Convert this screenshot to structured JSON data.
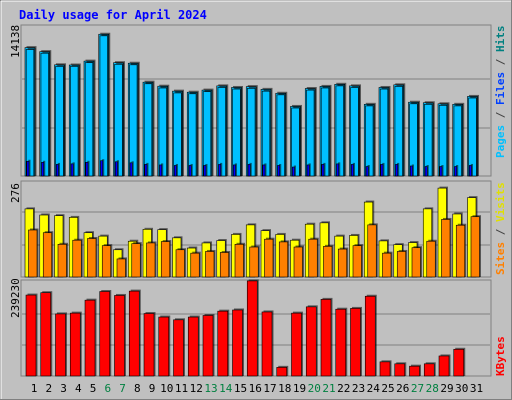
{
  "title": "Daily usage for April 2024",
  "panels": {
    "top": {
      "ymax_label": "14138",
      "ymax": 14138,
      "ylabels": [
        {
          "text": "Pages",
          "color": "#00c0ff"
        },
        {
          "text": " / ",
          "color": "#444444"
        },
        {
          "text": "Files",
          "color": "#0040ff"
        },
        {
          "text": " / ",
          "color": "#444444"
        },
        {
          "text": "Hits",
          "color": "#008080"
        }
      ]
    },
    "mid": {
      "ymax_label": "276",
      "ymax": 276,
      "ylabels": [
        {
          "text": "Sites",
          "color": "#ff8000"
        },
        {
          "text": " / ",
          "color": "#444444"
        },
        {
          "text": "Visits",
          "color": "#e0e000"
        }
      ]
    },
    "bot": {
      "ymax_label": "239230",
      "ymax": 239230,
      "ylabels": [
        {
          "text": "KBytes",
          "color": "#ff0000"
        }
      ]
    }
  },
  "day_labels": [
    "1",
    "2",
    "3",
    "4",
    "5",
    "6",
    "7",
    "8",
    "9",
    "10",
    "11",
    "12",
    "13",
    "14",
    "15",
    "16",
    "17",
    "18",
    "19",
    "20",
    "21",
    "22",
    "23",
    "24",
    "25",
    "26",
    "27",
    "28",
    "29",
    "30",
    "31"
  ],
  "weekend_days": [
    6,
    7,
    13,
    14,
    20,
    21,
    27,
    28
  ],
  "colors": {
    "hits": "#00c0ff",
    "files": "#0000ff",
    "pages": "#0000a0",
    "visits": "#ffff00",
    "sites": "#ff8000",
    "kbytes": "#ff0000",
    "weekday_label": "#000000",
    "weekend_label": "#008040"
  },
  "chart_data": [
    {
      "type": "bar",
      "categories": [
        "1",
        "2",
        "3",
        "4",
        "5",
        "6",
        "7",
        "8",
        "9",
        "10",
        "11",
        "12",
        "13",
        "14",
        "15",
        "16",
        "17",
        "18",
        "19",
        "20",
        "21",
        "22",
        "23",
        "24",
        "25",
        "26",
        "27",
        "28",
        "29",
        "30",
        "31"
      ],
      "series": [
        {
          "name": "Hits",
          "values": [
            12180,
            11800,
            10550,
            10530,
            10900,
            13450,
            10750,
            10700,
            8900,
            8520,
            8050,
            7950,
            8150,
            8550,
            8400,
            8480,
            8220,
            7850,
            6600,
            8300,
            8500,
            8700,
            8550,
            6800,
            8400,
            8650,
            7000,
            6950,
            6850,
            6800,
            7550
          ]
        },
        {
          "name": "Files",
          "values": [
            12000,
            11650,
            10400,
            10400,
            10750,
            13300,
            10600,
            10550,
            8750,
            8350,
            7880,
            7800,
            8000,
            8400,
            8250,
            8320,
            8050,
            7700,
            6450,
            8150,
            8350,
            8550,
            8400,
            6650,
            8250,
            8500,
            6850,
            6800,
            6700,
            6650,
            7400
          ]
        },
        {
          "name": "Pages",
          "values": [
            1400,
            1300,
            1100,
            1150,
            1300,
            1450,
            1350,
            1250,
            1100,
            1050,
            1000,
            1000,
            1000,
            1100,
            1050,
            1100,
            1050,
            1000,
            850,
            1050,
            1100,
            1150,
            1100,
            900,
            1100,
            1100,
            950,
            900,
            900,
            900,
            1000
          ]
        }
      ],
      "ylabel": "Pages / Files / Hits",
      "ylim": [
        0,
        14138
      ],
      "title": "Daily usage for April 2024"
    },
    {
      "type": "bar",
      "categories": [
        "1",
        "2",
        "3",
        "4",
        "5",
        "6",
        "7",
        "8",
        "9",
        "10",
        "11",
        "12",
        "13",
        "14",
        "15",
        "16",
        "17",
        "18",
        "19",
        "20",
        "21",
        "22",
        "23",
        "24",
        "25",
        "26",
        "27",
        "28",
        "29",
        "30",
        "31"
      ],
      "series": [
        {
          "name": "Visits",
          "values": [
            200,
            182,
            180,
            175,
            130,
            120,
            80,
            105,
            140,
            139,
            115,
            85,
            100,
            107,
            125,
            153,
            136,
            125,
            108,
            155,
            159,
            120,
            122,
            220,
            106,
            95,
            101,
            200,
            261,
            185,
            233
          ]
        },
        {
          "name": "Sites",
          "values": [
            138,
            130,
            96,
            108,
            113,
            92,
            53,
            98,
            100,
            104,
            80,
            70,
            75,
            72,
            96,
            88,
            111,
            103,
            88,
            111,
            90,
            82,
            92,
            153,
            70,
            75,
            86,
            105,
            169,
            152,
            177
          ]
        }
      ],
      "ylabel": "Sites / Visits",
      "ylim": [
        0,
        276
      ]
    },
    {
      "type": "bar",
      "categories": [
        "1",
        "2",
        "3",
        "4",
        "5",
        "6",
        "7",
        "8",
        "9",
        "10",
        "11",
        "12",
        "13",
        "14",
        "15",
        "16",
        "17",
        "18",
        "19",
        "20",
        "21",
        "22",
        "23",
        "24",
        "25",
        "26",
        "27",
        "28",
        "29",
        "30",
        "31"
      ],
      "series": [
        {
          "name": "KBytes",
          "values": [
            206000,
            212000,
            158000,
            160000,
            193000,
            215000,
            205000,
            216000,
            159000,
            150000,
            143000,
            150000,
            154000,
            165000,
            168000,
            242000,
            163000,
            22000,
            160000,
            176000,
            195000,
            170000,
            172000,
            203000,
            36000,
            31000,
            25000,
            31000,
            51000,
            68000,
            0
          ]
        }
      ],
      "ylabel": "KBytes",
      "ylim": [
        0,
        239230
      ]
    }
  ]
}
